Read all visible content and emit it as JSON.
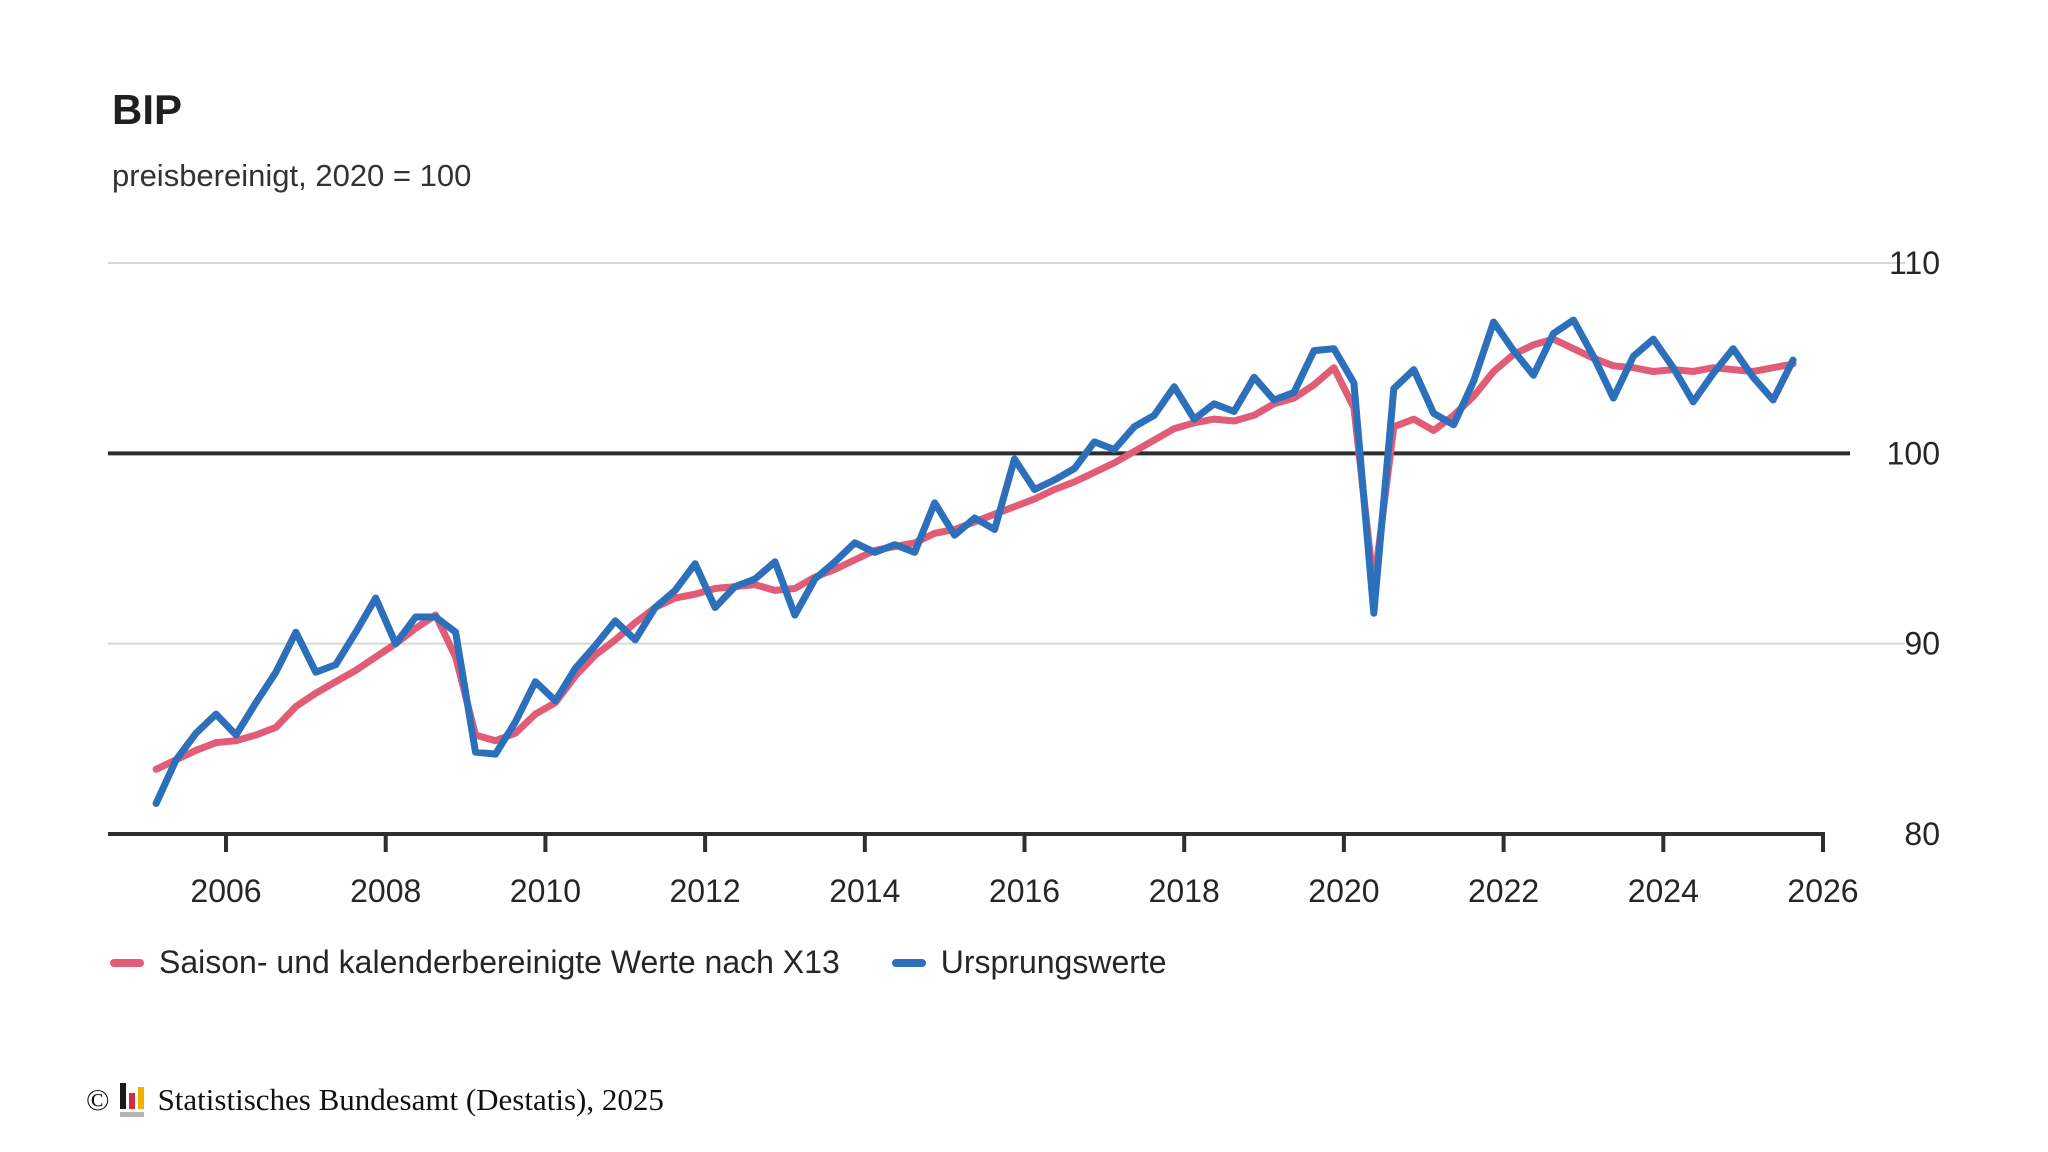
{
  "header": {
    "title": "BIP",
    "subtitle": "preisbereinigt, 2020 = 100"
  },
  "chart_data": {
    "type": "line",
    "title": "BIP",
    "subtitle": "preisbereinigt, 2020 = 100",
    "frequency": "quarterly",
    "x_start": "2005 Q1",
    "x_end": "2025 Q3",
    "x_ticks": [
      2006,
      2008,
      2010,
      2012,
      2014,
      2016,
      2018,
      2020,
      2022,
      2024,
      2026
    ],
    "y_ticks": [
      80,
      90,
      100,
      110
    ],
    "ylim": [
      80,
      110
    ],
    "reference_line": 100,
    "grid": "horizontal",
    "legend_position": "bottom",
    "series": [
      {
        "name": "Saison- und kalenderbereinigte Werte nach X13",
        "color": "#e15c77",
        "values": [
          83.4,
          83.9,
          84.4,
          84.8,
          84.9,
          85.2,
          85.6,
          86.7,
          87.4,
          88.0,
          88.6,
          89.3,
          90.0,
          90.8,
          91.5,
          89.3,
          85.2,
          84.9,
          85.3,
          86.3,
          86.9,
          88.3,
          89.4,
          90.2,
          91.1,
          91.9,
          92.4,
          92.6,
          92.9,
          93.0,
          93.1,
          92.8,
          92.9,
          93.5,
          93.9,
          94.4,
          94.9,
          95.1,
          95.3,
          95.8,
          96.0,
          96.4,
          96.8,
          97.2,
          97.6,
          98.1,
          98.5,
          99.0,
          99.5,
          100.1,
          100.7,
          101.3,
          101.6,
          101.8,
          101.7,
          102.0,
          102.6,
          102.9,
          103.6,
          104.5,
          102.4,
          93.0,
          101.4,
          101.8,
          101.2,
          102.0,
          103.0,
          104.3,
          105.2,
          105.7,
          106.0,
          105.5,
          105.0,
          104.6,
          104.5,
          104.3,
          104.4,
          104.3,
          104.5,
          104.4,
          104.3,
          104.5,
          104.7
        ]
      },
      {
        "name": "Ursprungswerte",
        "color": "#2c6fbb",
        "values": [
          81.6,
          83.9,
          85.3,
          86.3,
          85.2,
          86.9,
          88.5,
          90.6,
          88.5,
          88.9,
          90.6,
          92.4,
          90.0,
          91.4,
          91.4,
          90.6,
          84.3,
          84.2,
          85.9,
          88.0,
          87.0,
          88.7,
          89.9,
          91.2,
          90.2,
          91.9,
          92.8,
          94.2,
          91.9,
          93.0,
          93.4,
          94.3,
          91.5,
          93.4,
          94.3,
          95.3,
          94.8,
          95.2,
          94.8,
          97.4,
          95.7,
          96.6,
          96.0,
          99.7,
          98.1,
          98.6,
          99.2,
          100.6,
          100.2,
          101.4,
          102.0,
          103.5,
          101.8,
          102.6,
          102.2,
          104.0,
          102.8,
          103.2,
          105.4,
          105.5,
          103.7,
          91.6,
          103.4,
          104.4,
          102.1,
          101.5,
          103.8,
          106.9,
          105.4,
          104.1,
          106.3,
          107.0,
          105.1,
          102.9,
          105.1,
          106.0,
          104.5,
          102.7,
          104.2,
          105.5,
          104.0,
          102.8,
          104.9
        ]
      }
    ],
    "colors": {
      "grid": "#d7d7d7",
      "axis": "#2e2e2e",
      "tick_label": "#262626"
    }
  },
  "footer": {
    "symbol": "©",
    "text": "Statistisches Bundesamt (Destatis), 2025",
    "logo_colors": {
      "black": "#1a1a1a",
      "red": "#d22d40",
      "gold": "#f0b000",
      "gray": "#b5b5b5"
    }
  }
}
